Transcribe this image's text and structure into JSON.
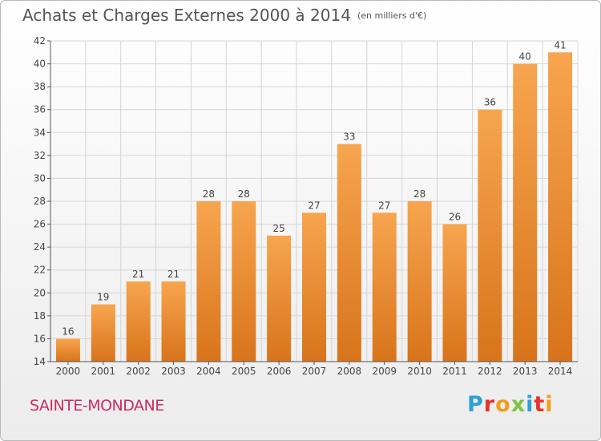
{
  "header": {
    "title": "Achats et Charges Externes 2000 à 2014",
    "unit": "(en milliers d'€)"
  },
  "footer": {
    "city": "SAINTE-MONDANE",
    "logo_letters": [
      "P",
      "r",
      "o",
      "x",
      "i",
      "t",
      "i"
    ],
    "logo_colors": [
      "#2e9fd6",
      "#e8332a",
      "#f39c1c",
      "#7fc241",
      "#2e9fd6",
      "#e8332a",
      "#f39c1c"
    ]
  },
  "colors": {
    "bar_light": "#f7a54f",
    "bar_dark": "#d8741b",
    "grid": "#d5d5d5",
    "axis": "#555555"
  },
  "chart_data": {
    "type": "bar",
    "title": "Achats et Charges Externes 2000 à 2014",
    "subtitle": "(en milliers d'€)",
    "categories": [
      "2000",
      "2001",
      "2002",
      "2003",
      "2004",
      "2005",
      "2006",
      "2007",
      "2008",
      "2009",
      "2010",
      "2011",
      "2012",
      "2013",
      "2014"
    ],
    "values": [
      16,
      19,
      21,
      21,
      28,
      28,
      25,
      27,
      33,
      27,
      28,
      26,
      36,
      40,
      41
    ],
    "ylim": [
      14,
      42
    ],
    "yticks": [
      14,
      16,
      18,
      20,
      22,
      24,
      26,
      28,
      30,
      32,
      34,
      36,
      38,
      40,
      42
    ],
    "grid": true,
    "xlabel": "",
    "ylabel": ""
  }
}
